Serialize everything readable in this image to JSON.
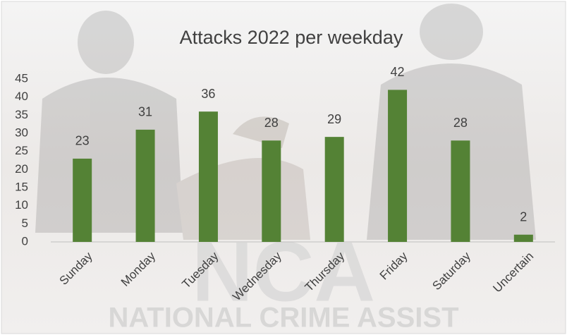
{
  "chart_data": {
    "type": "bar",
    "title": "Attacks 2022 per weekday",
    "categories": [
      "Sunday",
      "Monday",
      "Tuesday",
      "Wednesday",
      "Thursday",
      "Friday",
      "Saturday",
      "Uncertain"
    ],
    "values": [
      23,
      31,
      36,
      28,
      29,
      42,
      28,
      2
    ],
    "color": "#548235",
    "ylim": [
      0,
      45
    ],
    "yticks": [
      0,
      5,
      10,
      15,
      20,
      25,
      30,
      35,
      40,
      45
    ],
    "grid": false,
    "data_labels": true
  },
  "watermark": {
    "logo": "NCA",
    "caption": "NATIONAL CRIME ASSIST"
  }
}
